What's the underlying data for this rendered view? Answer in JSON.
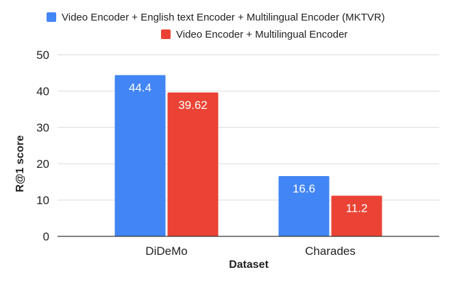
{
  "chart_data": {
    "type": "bar",
    "title": "",
    "xlabel": "Dataset",
    "ylabel": "R@1 score",
    "categories": [
      "DiDeMo",
      "Charades"
    ],
    "ylim": [
      0,
      50
    ],
    "yticks": [
      0,
      10,
      20,
      30,
      40,
      50
    ],
    "grid": true,
    "legend_position": "top",
    "series": [
      {
        "name": "Video Encoder + English text Encoder + Multilingual Encoder (MKTVR)",
        "color": "#4285f4",
        "values": [
          44.4,
          16.6
        ],
        "labels": [
          "44.4",
          "16.6"
        ]
      },
      {
        "name": "Video Encoder + Multilingual Encoder",
        "color": "#ea4335",
        "values": [
          39.62,
          11.2
        ],
        "labels": [
          "39.62",
          "11.2"
        ]
      }
    ]
  }
}
